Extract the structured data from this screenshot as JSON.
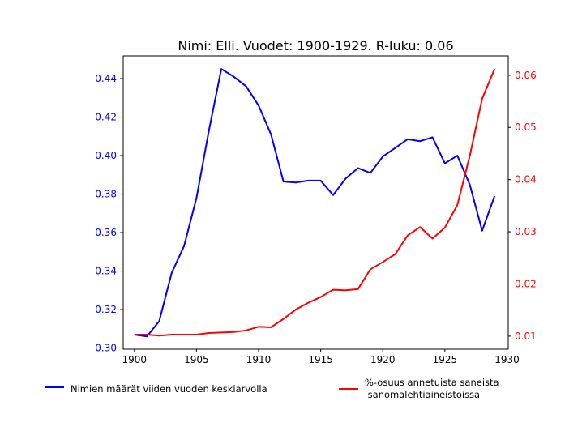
{
  "chart_data": {
    "type": "line",
    "title": "Nimi: Elli. Vuodet: 1900-1929. R-luku: 0.06",
    "x": [
      1900,
      1901,
      1902,
      1903,
      1904,
      1905,
      1906,
      1907,
      1908,
      1909,
      1910,
      1911,
      1912,
      1913,
      1914,
      1915,
      1916,
      1917,
      1918,
      1919,
      1920,
      1921,
      1922,
      1923,
      1924,
      1925,
      1926,
      1927,
      1928,
      1929
    ],
    "xlim": [
      1899.1,
      1930.1
    ],
    "xticks": [
      1900,
      1905,
      1910,
      1915,
      1920,
      1925,
      1930
    ],
    "series": [
      {
        "name": "Nimien määrät viiden vuoden keskiarvolla",
        "axis": "left",
        "color": "#0000ff",
        "values": [
          0.307,
          0.306,
          0.314,
          0.339,
          0.353,
          0.378,
          0.413,
          0.445,
          0.441,
          0.436,
          0.426,
          0.411,
          0.3865,
          0.386,
          0.387,
          0.387,
          0.3795,
          0.388,
          0.3935,
          0.391,
          0.3995,
          0.404,
          0.4085,
          0.4075,
          0.4095,
          0.396,
          0.4,
          0.385,
          0.361,
          0.379
        ]
      },
      {
        "name": "%-osuus annetuista saneista\n sanomalehtiaineistoissa",
        "axis": "right",
        "color": "#ff0000",
        "values": [
          0.0103,
          0.0103,
          0.0101,
          0.0103,
          0.0103,
          0.0103,
          0.0106,
          0.0107,
          0.0108,
          0.0111,
          0.0118,
          0.0117,
          0.0133,
          0.0151,
          0.0164,
          0.0175,
          0.0189,
          0.0188,
          0.019,
          0.0228,
          0.0242,
          0.0257,
          0.0293,
          0.0309,
          0.0287,
          0.0308,
          0.0351,
          0.0445,
          0.0555,
          0.0612
        ]
      }
    ],
    "ylim_left": [
      0.2994,
      0.4518
    ],
    "yticks_left": [
      0.3,
      0.32,
      0.34,
      0.36,
      0.38,
      0.4,
      0.42,
      0.44
    ],
    "ylim_right": [
      0.0075,
      0.0637
    ],
    "yticks_right": [
      0.01,
      0.02,
      0.03,
      0.04,
      0.05,
      0.06
    ],
    "left_axis_color": "#0000ff",
    "right_axis_color": "#ff0000",
    "grid": false,
    "legend": "below"
  }
}
